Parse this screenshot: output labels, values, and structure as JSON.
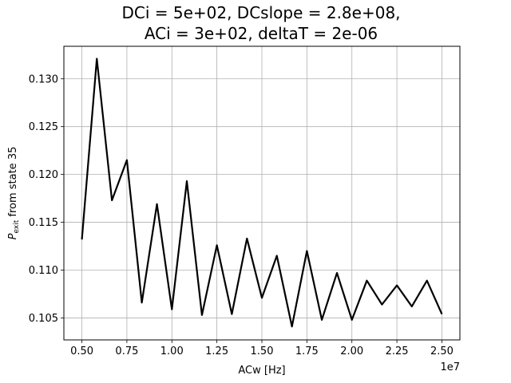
{
  "chart_data": {
    "type": "line",
    "title_lines": [
      "DCi = 5e+02,  DCslope = 2.8e+08,",
      "ACi = 3e+02,  deltaT = 2e-06"
    ],
    "xlabel": "ACw [Hz]",
    "ylabel_main": "P",
    "ylabel_subscript": "exit",
    "ylabel_rest": " from state 35",
    "x_offset_label": "1e7",
    "x_tick_values": [
      0.5,
      0.75,
      1.0,
      1.25,
      1.5,
      1.75,
      2.0,
      2.25,
      2.5
    ],
    "x_tick_labels": [
      "0.50",
      "0.75",
      "1.00",
      "1.25",
      "1.50",
      "1.75",
      "2.00",
      "2.25",
      "2.50"
    ],
    "y_tick_values": [
      0.105,
      0.11,
      0.115,
      0.12,
      0.125,
      0.13
    ],
    "y_tick_labels": [
      "0.105",
      "0.110",
      "0.115",
      "0.120",
      "0.125",
      "0.130"
    ],
    "xlim": [
      0.4,
      2.6
    ],
    "ylim": [
      0.1027,
      0.1334
    ],
    "grid": true,
    "line_color": "#000000",
    "series": [
      {
        "x": [
          0.5,
          0.583,
          0.667,
          0.75,
          0.833,
          0.917,
          1.0,
          1.083,
          1.167,
          1.25,
          1.333,
          1.417,
          1.5,
          1.583,
          1.667,
          1.75,
          1.833,
          1.917,
          2.0,
          2.083,
          2.167,
          2.25,
          2.333,
          2.417,
          2.5
        ],
        "y": [
          0.1132,
          0.1321,
          0.1173,
          0.1215,
          0.1066,
          0.1169,
          0.1059,
          0.1193,
          0.1053,
          0.1126,
          0.1054,
          0.1133,
          0.1071,
          0.1115,
          0.1041,
          0.112,
          0.1048,
          0.1097,
          0.1048,
          0.1089,
          0.1064,
          0.1084,
          0.1062,
          0.1089,
          0.1054
        ]
      }
    ]
  }
}
